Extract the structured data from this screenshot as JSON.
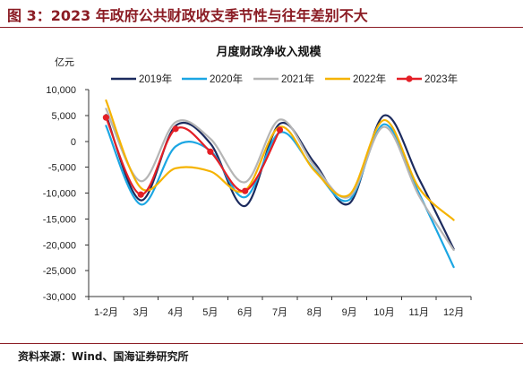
{
  "header": {
    "title": "图 3：2023 年政府公共财政收支季节性与往年差别不大"
  },
  "footer": {
    "source": "资料来源：Wind、国海证券研究所"
  },
  "theme": {
    "accent": "#8B1C24"
  },
  "chart_data": {
    "type": "line",
    "title": "月度财政净收入规模",
    "xlabel": "",
    "ylabel": "亿元",
    "categories": [
      "1-2月",
      "3月",
      "4月",
      "5月",
      "6月",
      "7月",
      "8月",
      "9月",
      "10月",
      "11月",
      "12月"
    ],
    "ylim": [
      -30000,
      10000
    ],
    "yticks": [
      "10,000",
      "5,000",
      "0",
      "-5,000",
      "-10,000",
      "-15,000",
      "-20,000",
      "-25,000",
      "-30,000"
    ],
    "grid": false,
    "legend_position": "top",
    "series": [
      {
        "name": "2019年",
        "color": "#1C2B5E",
        "values": [
          5100,
          -11400,
          3000,
          -400,
          -12500,
          3400,
          -4200,
          -12000,
          5000,
          -7200,
          -20800
        ]
      },
      {
        "name": "2020年",
        "color": "#1BA6E3",
        "values": [
          3000,
          -12200,
          -1000,
          -1800,
          -10800,
          1700,
          -5500,
          -11300,
          3300,
          -10000,
          -24300
        ]
      },
      {
        "name": "2021年",
        "color": "#B5B5B5",
        "values": [
          6300,
          -7700,
          3700,
          500,
          -7900,
          4200,
          -4800,
          -10700,
          2800,
          -10500,
          -21000
        ]
      },
      {
        "name": "2022年",
        "color": "#F5B301",
        "values": [
          7900,
          -9000,
          -5200,
          -5800,
          -9500,
          2800,
          -5700,
          -10300,
          4100,
          -9000,
          -15200
        ]
      },
      {
        "name": "2023年",
        "color": "#E41F26",
        "marker": "circle",
        "values": [
          4600,
          -10300,
          2400,
          -2000,
          -9600,
          2200,
          null,
          null,
          null,
          null,
          null
        ]
      }
    ]
  }
}
